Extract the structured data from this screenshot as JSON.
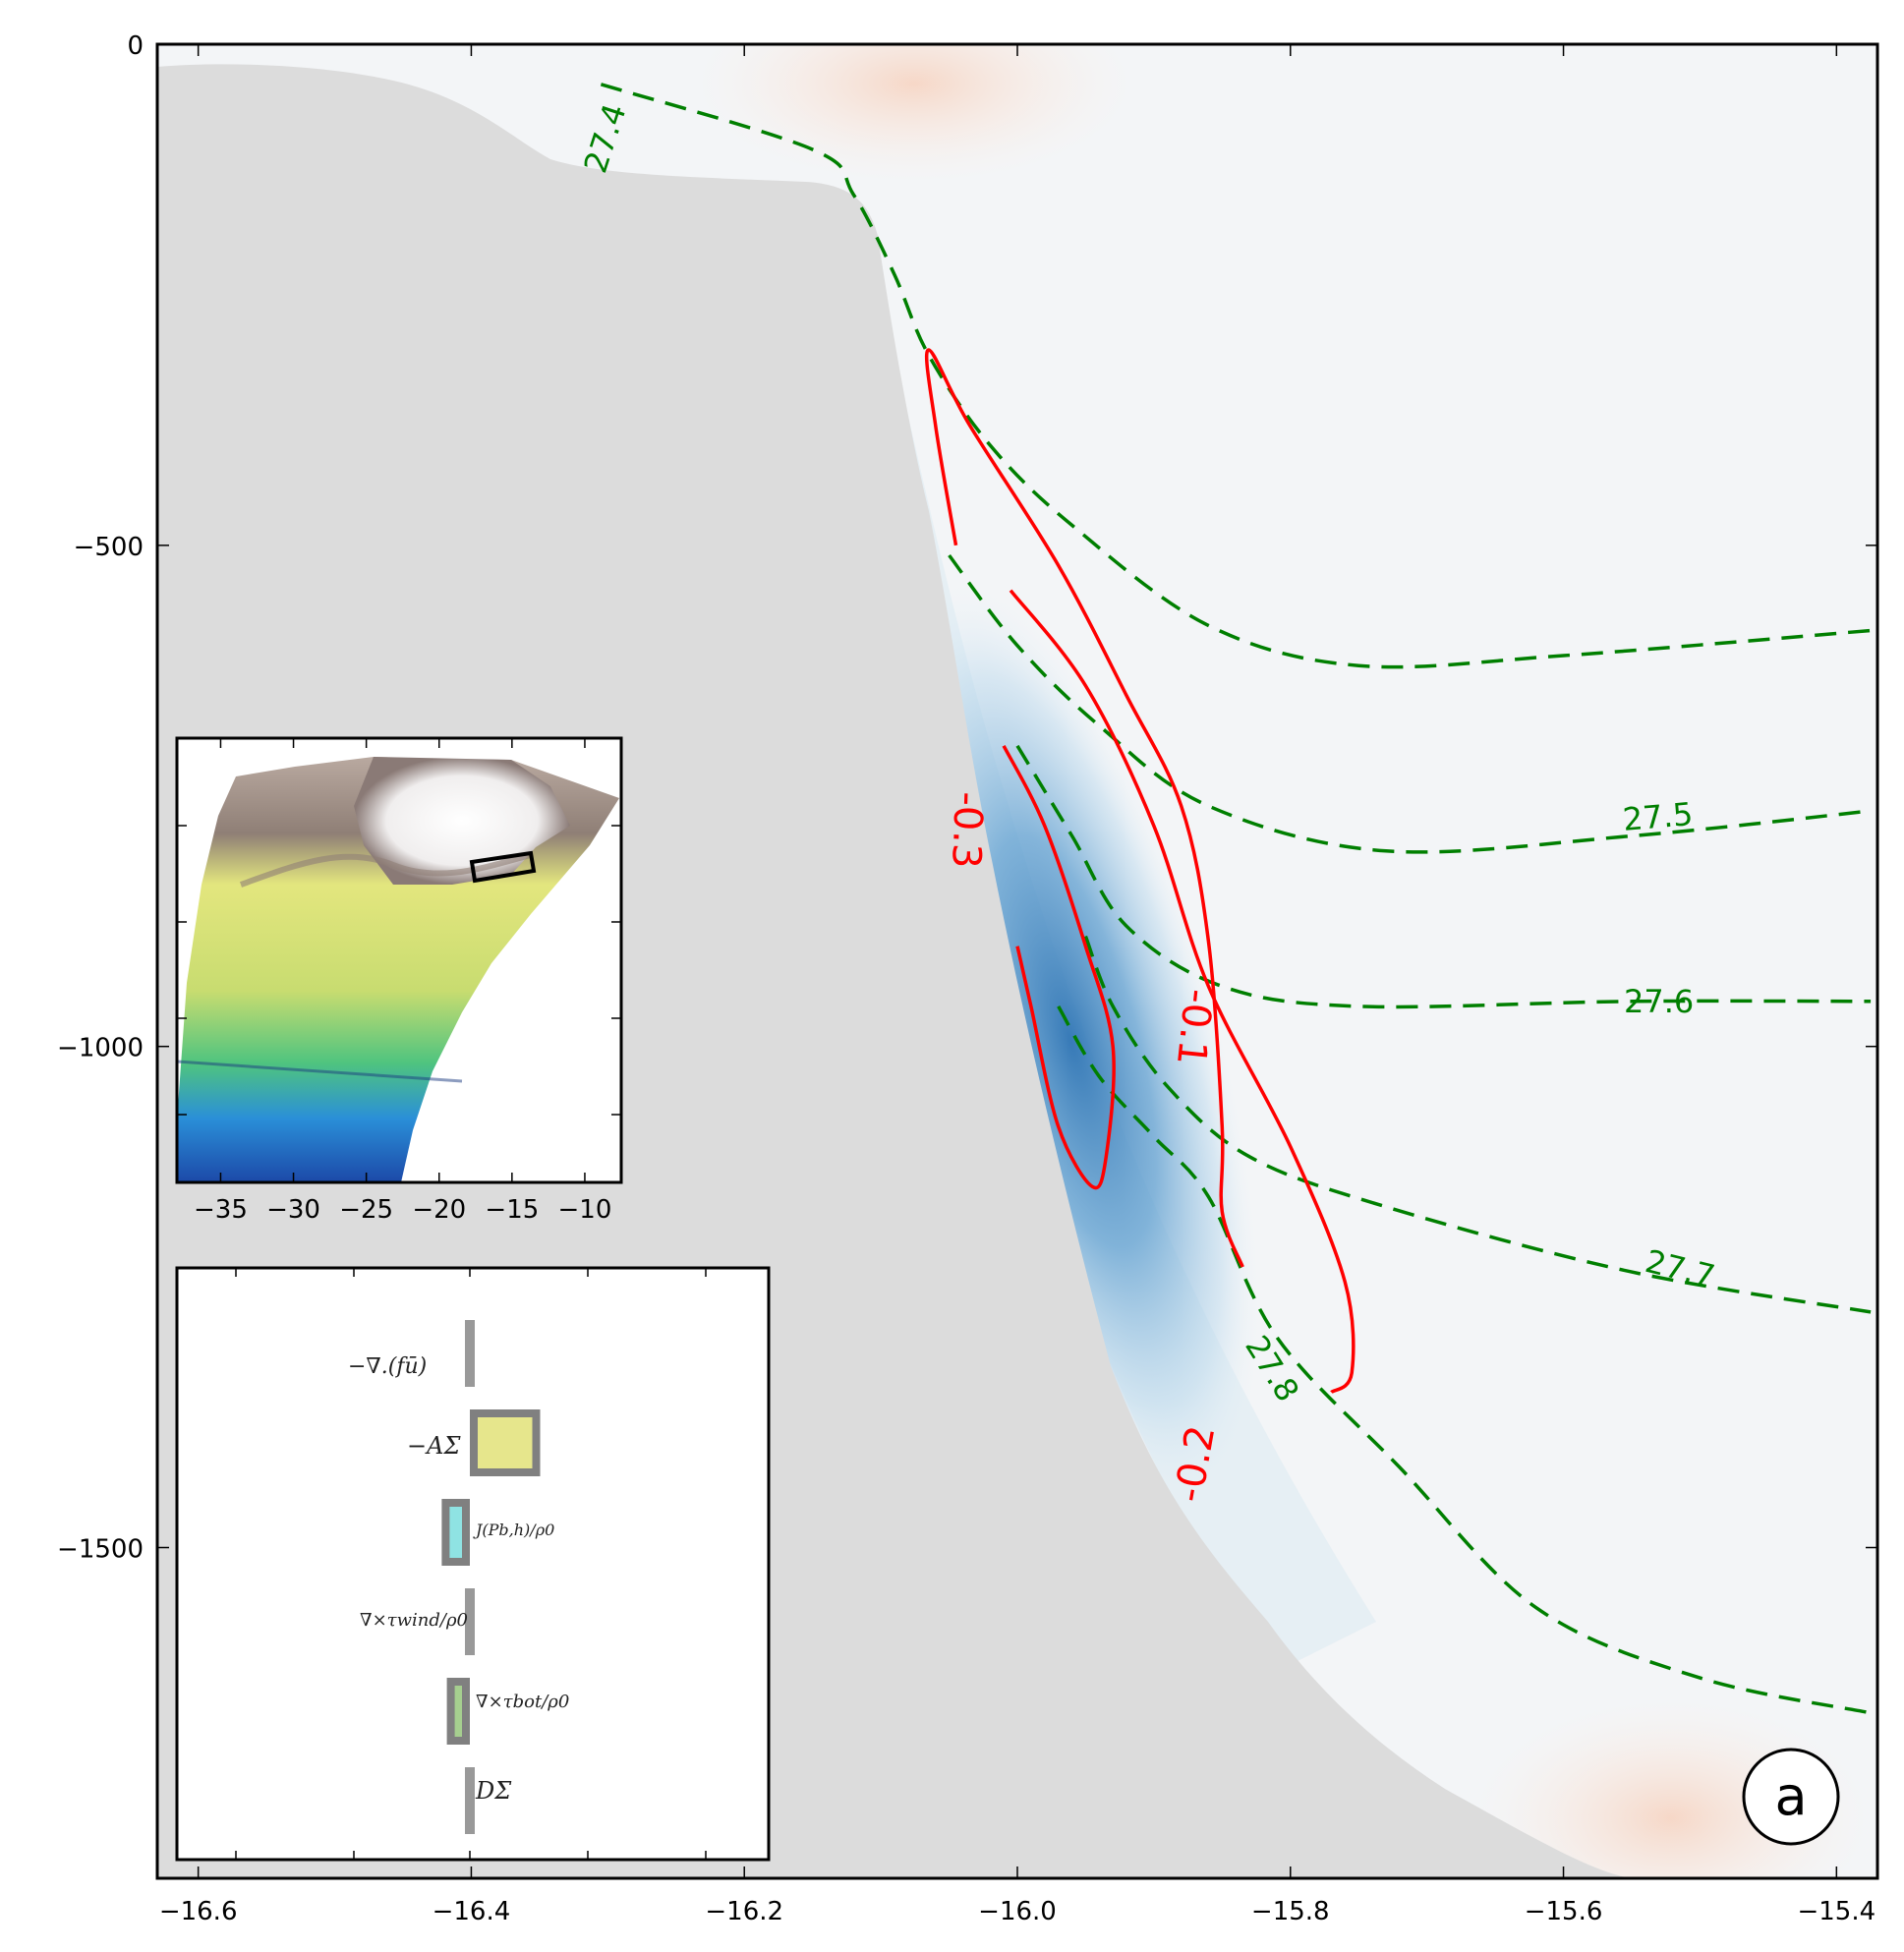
{
  "chart_data": {
    "type": "contour",
    "panel_label": "a",
    "x_axis": {
      "lim": [
        -16.63,
        -15.37
      ],
      "ticks": [
        -16.6,
        -16.4,
        -16.2,
        -16.0,
        -15.8,
        -15.6,
        -15.4
      ],
      "tick_labels": [
        "−16.6",
        "−16.4",
        "−16.2",
        "−16.0",
        "−15.8",
        "−15.6",
        "−15.4"
      ]
    },
    "y_axis": {
      "lim": [
        -1830,
        0
      ],
      "ticks": [
        0,
        -500,
        -1000,
        -1500
      ],
      "tick_labels": [
        "0",
        "−500",
        "−1000",
        "−1500"
      ]
    },
    "colors": {
      "topography": "#dcdcdc",
      "negative_core": "#2e74b4",
      "positive": "#f7d4c2",
      "density_contours": "#007f00",
      "velocity_contours": "#ff0000"
    },
    "density_contours": {
      "style": "dashed",
      "labels": [
        "27.4",
        "27.5",
        "27.6",
        "27.7",
        "27.8"
      ],
      "lines": [
        {
          "label": "27.4",
          "points": [
            [
              -16.305,
              -40
            ],
            [
              -16.15,
              -105
            ],
            [
              -16.12,
              -150
            ],
            [
              -16.09,
              -230
            ],
            [
              -16.065,
              -310
            ],
            [
              -16.02,
              -400
            ],
            [
              -15.96,
              -480
            ],
            [
              -15.86,
              -580
            ],
            [
              -15.75,
              -620
            ],
            [
              -15.6,
              -610
            ],
            [
              -15.375,
              -585
            ]
          ]
        },
        {
          "label": "27.5",
          "points": [
            [
              -16.05,
              -510
            ],
            [
              -16.0,
              -600
            ],
            [
              -15.94,
              -680
            ],
            [
              -15.86,
              -760
            ],
            [
              -15.73,
              -805
            ],
            [
              -15.55,
              -790
            ],
            [
              -15.375,
              -765
            ]
          ]
        },
        {
          "label": "27.6",
          "points": [
            [
              -16.0,
              -700
            ],
            [
              -15.96,
              -790
            ],
            [
              -15.92,
              -880
            ],
            [
              -15.85,
              -940
            ],
            [
              -15.75,
              -960
            ],
            [
              -15.55,
              -955
            ],
            [
              -15.375,
              -955
            ]
          ]
        },
        {
          "label": "27.7",
          "points": [
            [
              -15.95,
              -890
            ],
            [
              -15.93,
              -960
            ],
            [
              -15.89,
              -1040
            ],
            [
              -15.83,
              -1110
            ],
            [
              -15.73,
              -1160
            ],
            [
              -15.55,
              -1225
            ],
            [
              -15.375,
              -1265
            ]
          ]
        },
        {
          "label": "27.8",
          "points": [
            [
              -15.97,
              -960
            ],
            [
              -15.94,
              -1030
            ],
            [
              -15.9,
              -1090
            ],
            [
              -15.86,
              -1150
            ],
            [
              -15.81,
              -1290
            ],
            [
              -15.72,
              -1420
            ],
            [
              -15.62,
              -1560
            ],
            [
              -15.5,
              -1630
            ],
            [
              -15.375,
              -1665
            ]
          ]
        }
      ]
    },
    "velocity_contours": {
      "style": "solid",
      "labels": [
        "-0.1",
        "-0.2",
        "-0.3"
      ],
      "lines": [
        {
          "label": "-0.1",
          "points": [
            [
              -16.045,
              -500
            ],
            [
              -16.06,
              -380
            ],
            [
              -16.065,
              -305
            ],
            [
              -16.035,
              -380
            ],
            [
              -15.97,
              -520
            ],
            [
              -15.92,
              -650
            ],
            [
              -15.88,
              -760
            ],
            [
              -15.86,
              -895
            ],
            [
              -15.85,
              -1080
            ],
            [
              -15.85,
              -1165
            ],
            [
              -15.835,
              -1220
            ]
          ]
        },
        {
          "label": "-0.2",
          "points": [
            [
              -16.005,
              -545
            ],
            [
              -15.95,
              -640
            ],
            [
              -15.9,
              -780
            ],
            [
              -15.86,
              -940
            ],
            [
              -15.8,
              -1100
            ],
            [
              -15.76,
              -1235
            ],
            [
              -15.755,
              -1325
            ],
            [
              -15.77,
              -1345
            ]
          ]
        },
        {
          "label": "-0.3",
          "points": [
            [
              -16.01,
              -700
            ],
            [
              -15.98,
              -780
            ],
            [
              -15.95,
              -900
            ],
            [
              -15.93,
              -1000
            ],
            [
              -15.935,
              -1110
            ],
            [
              -15.945,
              -1140
            ],
            [
              -15.97,
              -1080
            ],
            [
              -15.99,
              -960
            ],
            [
              -16.0,
              -900
            ]
          ]
        }
      ]
    },
    "inset_map": {
      "x_ticks": [
        -35,
        -30,
        -25,
        -20,
        -15,
        -10
      ],
      "x_tick_labels": [
        "−35",
        "−30",
        "−25",
        "−20",
        "−15",
        "−10"
      ],
      "x_lim": [
        -38,
        -7.5
      ]
    },
    "inset_bars": {
      "type": "bar",
      "orientation": "horizontal",
      "terms": [
        {
          "name": "−∇.(fū)",
          "value": 0.0
        },
        {
          "name": "−AΣ",
          "value": 0.55,
          "color": "#e6e68c"
        },
        {
          "name": "J(Pb,h)/ρ0",
          "value": -0.22,
          "color": "#8fe3e3"
        },
        {
          "name": "∇×τwind/ρ0",
          "value": 0.0
        },
        {
          "name": "∇×τbot/ρ0",
          "value": -0.18,
          "color": "#a6cf8f"
        },
        {
          "name": "DΣ",
          "value": 0.0
        }
      ]
    }
  }
}
